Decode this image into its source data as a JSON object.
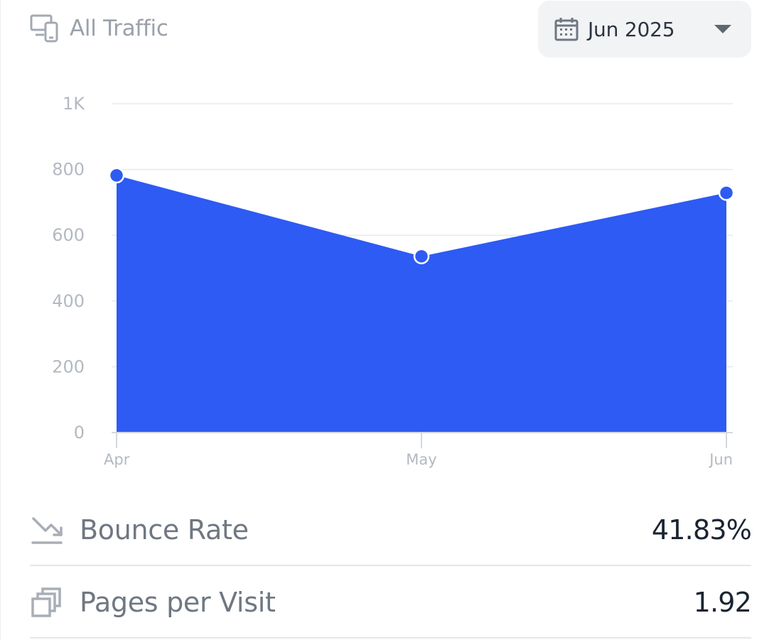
{
  "header": {
    "title": "All Traffic",
    "icon": "devices-icon"
  },
  "date_select": {
    "value": "Jun 2025",
    "icon": "calendar-icon"
  },
  "metrics": [
    {
      "label": "Bounce Rate",
      "value": "41.83%",
      "icon": "trending-down-icon"
    },
    {
      "label": "Pages per Visit",
      "value": "1.92",
      "icon": "pages-stack-icon"
    }
  ],
  "colors": {
    "accent": "#2d5bf3",
    "grid": "#e8eaed",
    "tick_text": "#b3b9c1"
  },
  "chart_data": {
    "type": "area",
    "categories": [
      "Apr",
      "May",
      "Jun"
    ],
    "values": [
      782,
      536,
      729
    ],
    "ylim": [
      0,
      1000
    ],
    "yticks": [
      0,
      200,
      400,
      600,
      800,
      1000
    ],
    "ytick_labels": [
      "0",
      "200",
      "400",
      "600",
      "800",
      "1K"
    ],
    "grid": true,
    "legend": "none",
    "title": "",
    "xlabel": "",
    "ylabel": ""
  }
}
